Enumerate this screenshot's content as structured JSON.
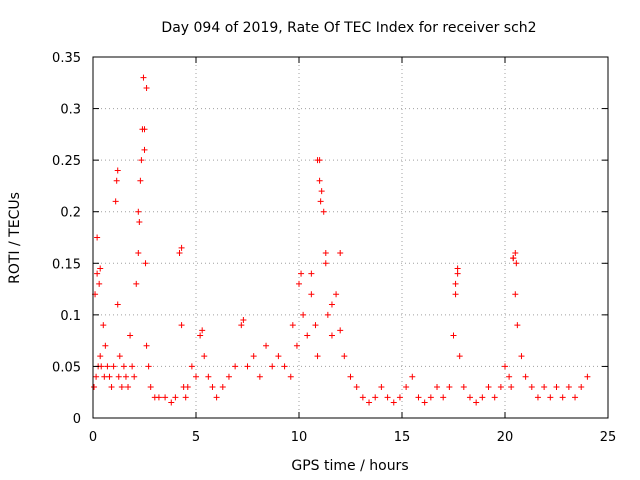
{
  "chart_data": {
    "type": "scatter",
    "title": "Day 094 of 2019, Rate Of TEC Index for receiver sch2",
    "xlabel": "GPS time / hours",
    "ylabel": "ROTI / TECUs",
    "xlim": [
      0,
      25
    ],
    "ylim": [
      0,
      0.35
    ],
    "xticks": [
      0,
      5,
      10,
      15,
      20,
      25
    ],
    "yticks": [
      0,
      0.05,
      0.1,
      0.15,
      0.2,
      0.25,
      0.3,
      0.35
    ],
    "grid": true,
    "marker": "+",
    "color": "#ff0000",
    "series": [
      {
        "x": [
          0.05,
          0.1,
          0.15,
          0.2,
          0.25,
          0.3,
          0.35,
          0.4,
          0.5,
          0.55,
          0.6,
          0.7,
          0.8,
          0.9,
          1.0,
          1.1,
          1.15,
          1.2,
          1.25,
          1.3,
          1.4,
          1.5,
          1.6,
          1.7,
          1.8,
          1.9,
          2.0,
          2.1,
          2.2,
          2.25,
          2.3,
          2.35,
          2.4,
          2.45,
          2.5,
          2.55,
          2.6,
          2.7,
          2.8,
          3.0,
          3.2,
          3.5,
          3.8,
          4.0,
          4.2,
          4.3,
          4.4,
          4.5,
          4.6,
          4.8,
          5.0,
          5.2,
          5.4,
          5.6,
          5.8,
          6.0,
          6.3,
          6.6,
          6.9,
          7.2,
          7.5,
          7.8,
          8.1,
          8.4,
          8.7,
          9.0,
          9.3,
          9.6,
          9.9,
          10.0,
          10.2,
          10.4,
          10.6,
          10.8,
          10.9,
          11.0,
          11.1,
          11.2,
          11.3,
          11.4,
          11.6,
          11.8,
          12.0,
          12.2,
          12.5,
          12.8,
          13.1,
          13.4,
          13.7,
          14.0,
          14.3,
          14.6,
          14.9,
          15.2,
          15.5,
          15.8,
          16.1,
          16.4,
          16.7,
          17.0,
          17.3,
          17.5,
          17.6,
          17.7,
          17.8,
          18.0,
          18.3,
          18.6,
          18.9,
          19.2,
          19.5,
          19.8,
          20.0,
          20.2,
          20.3,
          20.4,
          20.5,
          20.6,
          20.8,
          21.0,
          21.3,
          21.6,
          21.9,
          22.2,
          22.5,
          22.8,
          23.1,
          23.4,
          23.7,
          24.0,
          0.2,
          0.35,
          1.2,
          2.2,
          2.5,
          2.6,
          4.3,
          5.3,
          7.3,
          9.7,
          10.1,
          10.6,
          10.9,
          11.0,
          11.05,
          11.3,
          11.6,
          12.0,
          17.6,
          17.7,
          20.4,
          20.5,
          20.55
        ],
        "y": [
          0.03,
          0.12,
          0.04,
          0.14,
          0.05,
          0.13,
          0.06,
          0.05,
          0.09,
          0.04,
          0.07,
          0.05,
          0.04,
          0.03,
          0.05,
          0.21,
          0.23,
          0.24,
          0.04,
          0.06,
          0.03,
          0.05,
          0.04,
          0.03,
          0.08,
          0.05,
          0.04,
          0.13,
          0.16,
          0.19,
          0.23,
          0.25,
          0.28,
          0.33,
          0.26,
          0.15,
          0.07,
          0.05,
          0.03,
          0.02,
          0.02,
          0.02,
          0.015,
          0.02,
          0.16,
          0.09,
          0.03,
          0.02,
          0.03,
          0.05,
          0.04,
          0.08,
          0.06,
          0.04,
          0.03,
          0.02,
          0.03,
          0.04,
          0.05,
          0.09,
          0.05,
          0.06,
          0.04,
          0.07,
          0.05,
          0.06,
          0.05,
          0.04,
          0.07,
          0.13,
          0.1,
          0.08,
          0.12,
          0.09,
          0.06,
          0.25,
          0.22,
          0.2,
          0.15,
          0.1,
          0.08,
          0.12,
          0.16,
          0.06,
          0.04,
          0.03,
          0.02,
          0.015,
          0.02,
          0.03,
          0.02,
          0.015,
          0.02,
          0.03,
          0.04,
          0.02,
          0.015,
          0.02,
          0.03,
          0.02,
          0.03,
          0.08,
          0.12,
          0.145,
          0.06,
          0.03,
          0.02,
          0.015,
          0.02,
          0.03,
          0.02,
          0.03,
          0.05,
          0.04,
          0.03,
          0.155,
          0.12,
          0.09,
          0.06,
          0.04,
          0.03,
          0.02,
          0.03,
          0.02,
          0.03,
          0.02,
          0.03,
          0.02,
          0.03,
          0.04,
          0.175,
          0.145,
          0.11,
          0.2,
          0.28,
          0.32,
          0.165,
          0.085,
          0.095,
          0.09,
          0.14,
          0.14,
          0.25,
          0.23,
          0.21,
          0.16,
          0.11,
          0.085,
          0.13,
          0.14,
          0.155,
          0.16,
          0.15
        ]
      }
    ]
  }
}
